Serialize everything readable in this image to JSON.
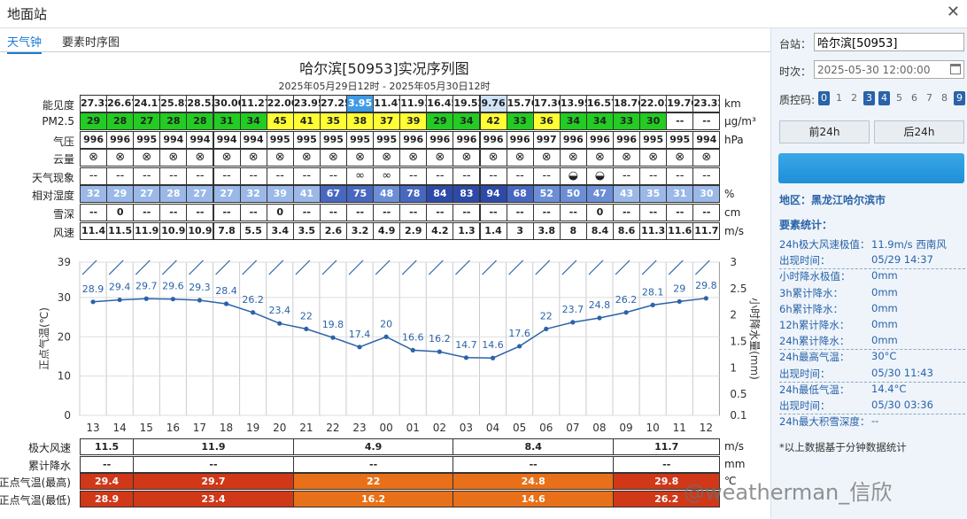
{
  "window": {
    "title": "地面站",
    "close": "✕"
  },
  "tabs": [
    "天气钟",
    "要素时序图"
  ],
  "chart": {
    "title": "哈尔滨[50953]实况序列图",
    "subtitle": "2025年05月29日12时 - 2025年05月30日12时"
  },
  "colors": {
    "green": "#22cc22",
    "yellow": "#ffff33",
    "blue_light": "#9ab8e8",
    "blue_mid": "#6b8ed6",
    "blue_dark": "#2e4aa8",
    "line": "#2a63a8",
    "orange": "#e87018",
    "red": "#d03818"
  },
  "rows": {
    "visibility": {
      "label": "能见度",
      "unit": "km",
      "values": [
        "27.32",
        "26.67",
        "24.17",
        "25.82",
        "28.53",
        "30.00",
        "11.27",
        "22.00",
        "23.95",
        "27.25",
        "3.95",
        "11.47",
        "11.93",
        "16.45",
        "19.52",
        "9.76",
        "15.76",
        "17.30",
        "13.95",
        "16.57",
        "18.76",
        "22.03",
        "19.70",
        "23.32"
      ]
    },
    "pm25": {
      "label": "PM2.5",
      "unit": "μg/m³",
      "values": [
        "29",
        "28",
        "27",
        "28",
        "28",
        "31",
        "34",
        "45",
        "41",
        "35",
        "38",
        "37",
        "39",
        "29",
        "34",
        "42",
        "33",
        "36",
        "34",
        "34",
        "33",
        "30",
        "--",
        "--"
      ]
    },
    "pressure": {
      "label": "气压",
      "unit": "hPa",
      "values": [
        "996",
        "996",
        "995",
        "994",
        "994",
        "994",
        "994",
        "995",
        "995",
        "995",
        "995",
        "995",
        "996",
        "996",
        "996",
        "996",
        "996",
        "997",
        "996",
        "996",
        "996",
        "995",
        "995",
        "994"
      ]
    },
    "cloud": {
      "label": "云量",
      "symbol": "⊗"
    },
    "weather": {
      "label": "天气现象",
      "values": [
        "--",
        "--",
        "--",
        "--",
        "--",
        "--",
        "--",
        "--",
        "--",
        "--",
        "∞",
        "∞",
        "--",
        "--",
        "--",
        "--",
        "--",
        "--",
        "◒",
        "◒",
        "--",
        "--",
        "--",
        "--"
      ]
    },
    "humidity": {
      "label": "相对湿度",
      "unit": "%",
      "values": [
        "32",
        "29",
        "27",
        "28",
        "27",
        "27",
        "32",
        "39",
        "41",
        "67",
        "75",
        "48",
        "78",
        "84",
        "83",
        "94",
        "68",
        "52",
        "50",
        "47",
        "43",
        "35",
        "31",
        "30"
      ]
    },
    "snow": {
      "label": "雪深",
      "unit": "cm",
      "values": [
        "--",
        "0",
        "--",
        "--",
        "--",
        "--",
        "--",
        "0",
        "--",
        "--",
        "--",
        "--",
        "--",
        "--",
        "--",
        "--",
        "--",
        "--",
        "--",
        "0",
        "--",
        "--",
        "--",
        "--"
      ]
    },
    "wind": {
      "label": "风速",
      "unit": "m/s",
      "values": [
        "11.4",
        "11.5",
        "11.9",
        "10.9",
        "10.9",
        "7.8",
        "5.5",
        "3.4",
        "3.5",
        "2.6",
        "3.2",
        "4.9",
        "2.9",
        "4.2",
        "1.3",
        "1.4",
        "3",
        "3.8",
        "8",
        "8.4",
        "8.6",
        "11.3",
        "11.6",
        "11.7"
      ]
    }
  },
  "chart_data": {
    "type": "line",
    "x": [
      "13",
      "14",
      "15",
      "16",
      "17",
      "18",
      "19",
      "20",
      "21",
      "22",
      "23",
      "00",
      "01",
      "02",
      "03",
      "04",
      "05",
      "06",
      "07",
      "08",
      "09",
      "10",
      "11",
      "12"
    ],
    "series": [
      {
        "values": [
          28.9,
          29.4,
          29.7,
          29.6,
          29.3,
          28.4,
          26.2,
          23.4,
          22,
          19.8,
          17.4,
          20,
          16.6,
          16.2,
          14.7,
          14.6,
          17.6,
          22,
          23.7,
          24.8,
          26.2,
          28.1,
          29,
          29.8
        ]
      }
    ],
    "ylabel": "正点气温(℃)",
    "ylabel_right": "小时降水量(mm)",
    "ylim": [
      0,
      39
    ],
    "yticks": [
      0,
      10,
      20,
      30,
      39
    ],
    "ylim_right": [
      0.1,
      3
    ],
    "yticks_right": [
      "0.1",
      "0.5",
      "1",
      "1.5",
      "2",
      "2.5",
      "3"
    ],
    "grid": true
  },
  "summary": {
    "rows": [
      {
        "label": "极大风速",
        "unit": "m/s",
        "values": [
          "11.5",
          "11.9",
          "4.9",
          "8.4",
          "11.7"
        ]
      },
      {
        "label": "累计降水",
        "unit": "mm",
        "values": [
          "--",
          "--",
          "--",
          "--",
          "--"
        ]
      },
      {
        "label": "正点气温(最高)",
        "unit": "℃",
        "values": [
          "29.4",
          "29.7",
          "22",
          "24.8",
          "29.8"
        ]
      },
      {
        "label": "正点气温(最低)",
        "unit": "",
        "values": [
          "28.9",
          "23.4",
          "16.2",
          "14.6",
          "26.2"
        ]
      }
    ]
  },
  "panel": {
    "station_label": "台站：",
    "station_value": "哈尔滨[50953]",
    "time_label": "时次：",
    "time_value": "2025-05-30 12:00:00",
    "qc_label": "质控码:",
    "qc": [
      "0",
      "1",
      "2",
      "3",
      "4",
      "5",
      "6",
      "7",
      "8",
      "9"
    ],
    "prev": "前24h",
    "next": "后24h",
    "region": "地区：黑龙江哈尔滨市",
    "stats_title": "要素统计：",
    "stats": [
      {
        "k": "24h极大风速极值：",
        "v": "11.9m/s 西南风"
      },
      {
        "k": "出现时间：",
        "v": "05/29 14:37"
      },
      {
        "k": "小时降水极值：",
        "v": "0mm"
      },
      {
        "k": "3h累计降水：",
        "v": "0mm"
      },
      {
        "k": "6h累计降水：",
        "v": "0mm"
      },
      {
        "k": "12h累计降水：",
        "v": "0mm"
      },
      {
        "k": "24h累计降水：",
        "v": "0mm"
      },
      {
        "k": "24h最高气温：",
        "v": "30°C"
      },
      {
        "k": "出现时间：",
        "v": "05/30 11:43"
      },
      {
        "k": "24h最低气温：",
        "v": "14.4°C"
      },
      {
        "k": "出现时间：",
        "v": "05/30 03:36"
      },
      {
        "k": "24h最大积雪深度：",
        "v": "--"
      }
    ],
    "note": "*以上数据基于分钟数据统计"
  },
  "watermark": "@weatherman_信欣"
}
